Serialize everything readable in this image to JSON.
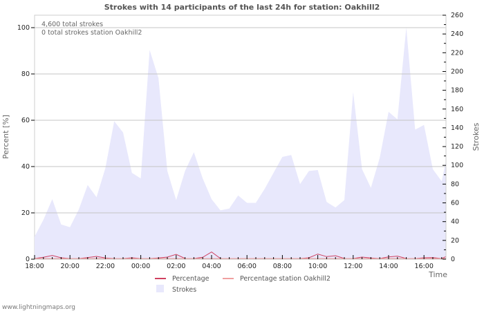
{
  "chart_data": {
    "type": "area",
    "title": "Strokes with 14 participants of the last 24h for station: Oakhill2",
    "xlabel": "Time",
    "ylabel_left": "Percent   [%]",
    "ylabel_right": "Strokes",
    "x_ticks": [
      "18:00",
      "20:00",
      "22:00",
      "00:00",
      "02:00",
      "04:00",
      "06:00",
      "08:00",
      "10:00",
      "12:00",
      "14:00",
      "16:00"
    ],
    "y_left_ticks": [
      0,
      20,
      40,
      60,
      80,
      100
    ],
    "y_right_ticks": [
      0,
      20,
      40,
      60,
      80,
      100,
      120,
      140,
      160,
      180,
      200,
      220,
      240,
      260
    ],
    "ylim_left": [
      0,
      100
    ],
    "ylim_right": [
      0,
      260
    ],
    "grid": true,
    "legend_position": "bottom",
    "annotations": [
      "4,600 total strokes",
      "0 total strokes station Oakhill2"
    ],
    "x": [
      "18:00",
      "18:30",
      "19:00",
      "19:30",
      "20:00",
      "20:30",
      "21:00",
      "21:30",
      "22:00",
      "22:30",
      "23:00",
      "23:30",
      "00:00",
      "00:30",
      "01:00",
      "01:30",
      "02:00",
      "02:30",
      "03:00",
      "03:30",
      "04:00",
      "04:30",
      "05:00",
      "05:30",
      "06:00",
      "06:30",
      "07:00",
      "07:30",
      "08:00",
      "08:30",
      "09:00",
      "09:30",
      "10:00",
      "10:30",
      "11:00",
      "11:30",
      "12:00",
      "12:30",
      "13:00",
      "13:30",
      "14:00",
      "14:30",
      "15:00",
      "15:30",
      "16:00",
      "16:30",
      "17:00",
      "17:20"
    ],
    "series": [
      {
        "name": "Strokes",
        "axis": "right",
        "color": "#e8e8fc",
        "values": [
          24,
          42,
          64,
          37,
          34,
          53,
          79,
          66,
          97,
          147,
          135,
          92,
          86,
          223,
          193,
          94,
          63,
          94,
          114,
          86,
          64,
          52,
          54,
          68,
          60,
          60,
          75,
          92,
          109,
          111,
          80,
          94,
          95,
          61,
          55,
          63,
          178,
          96,
          76,
          108,
          157,
          149,
          247,
          138,
          143,
          96,
          83,
          105
        ]
      },
      {
        "name": "Percentage",
        "axis": "left",
        "color": "#d04060",
        "values": [
          0,
          0.5,
          1.3,
          0.3,
          0,
          0,
          0.4,
          0.9,
          0.2,
          0,
          0,
          0.3,
          0,
          0,
          0.2,
          0.6,
          1.8,
          0,
          0,
          0.5,
          2.8,
          0,
          0,
          0,
          0,
          0,
          0,
          0,
          0,
          0,
          0,
          0.3,
          1.9,
          0.8,
          1.2,
          0,
          0,
          0.6,
          0.2,
          0,
          0.7,
          1.0,
          0,
          0,
          0.3,
          0.4,
          0,
          0.8
        ]
      },
      {
        "name": "Percentage station Oakhill2",
        "axis": "left",
        "color": "#f0a0a0",
        "values": [
          0,
          0,
          0,
          0,
          0,
          0,
          0,
          0,
          0,
          0,
          0,
          0,
          0,
          0,
          0,
          0,
          0,
          0,
          0,
          0,
          0,
          0,
          0,
          0,
          0,
          0,
          0,
          0,
          0,
          0,
          0,
          0,
          0,
          0,
          0,
          0,
          0,
          0,
          0,
          0,
          0,
          0,
          0,
          0,
          0,
          0,
          0,
          0
        ]
      }
    ]
  },
  "header": {
    "title": "Strokes with 14 participants of the last 24h for station: Oakhill2"
  },
  "info": {
    "total_strokes": "4,600 total strokes",
    "station_strokes": "0 total strokes station Oakhill2"
  },
  "axes": {
    "left_label": "Percent   [%]",
    "right_label": "Strokes",
    "x_label": "Time"
  },
  "legend": {
    "items": [
      {
        "label": "Percentage",
        "color": "#d04060"
      },
      {
        "label": "Percentage station Oakhill2",
        "color": "#f0a0a0"
      },
      {
        "label": "Strokes",
        "color": "#e8e8fc"
      }
    ]
  },
  "footer": {
    "credit": "www.lightningmaps.org"
  }
}
